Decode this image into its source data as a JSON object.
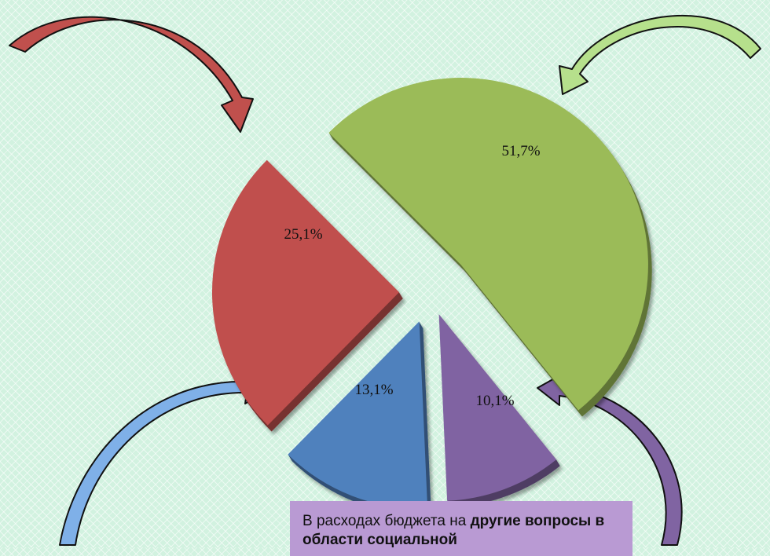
{
  "chart_data": {
    "type": "pie",
    "title": "",
    "slices": [
      {
        "label": "51,7%",
        "value": 51.7,
        "color": "#9bbb59"
      },
      {
        "label": "10,1%",
        "value": 10.1,
        "color": "#8064a2"
      },
      {
        "label": "13,1%",
        "value": 13.1,
        "color": "#4f81bd"
      },
      {
        "label": "25,1%",
        "value": 25.1,
        "color": "#c0504d"
      }
    ],
    "legend": "none"
  },
  "callout": {
    "text_pre": "В расходах бюджета на ",
    "text_bold": "другие вопросы в области социальной"
  },
  "arrows": [
    {
      "name": "red-arrow-icon",
      "color": "#c0504d"
    },
    {
      "name": "green-arrow-icon",
      "color": "#b6e08c"
    },
    {
      "name": "blue-arrow-icon",
      "color": "#7fb0e8"
    },
    {
      "name": "purple-arrow-icon",
      "color": "#8064a2"
    }
  ]
}
